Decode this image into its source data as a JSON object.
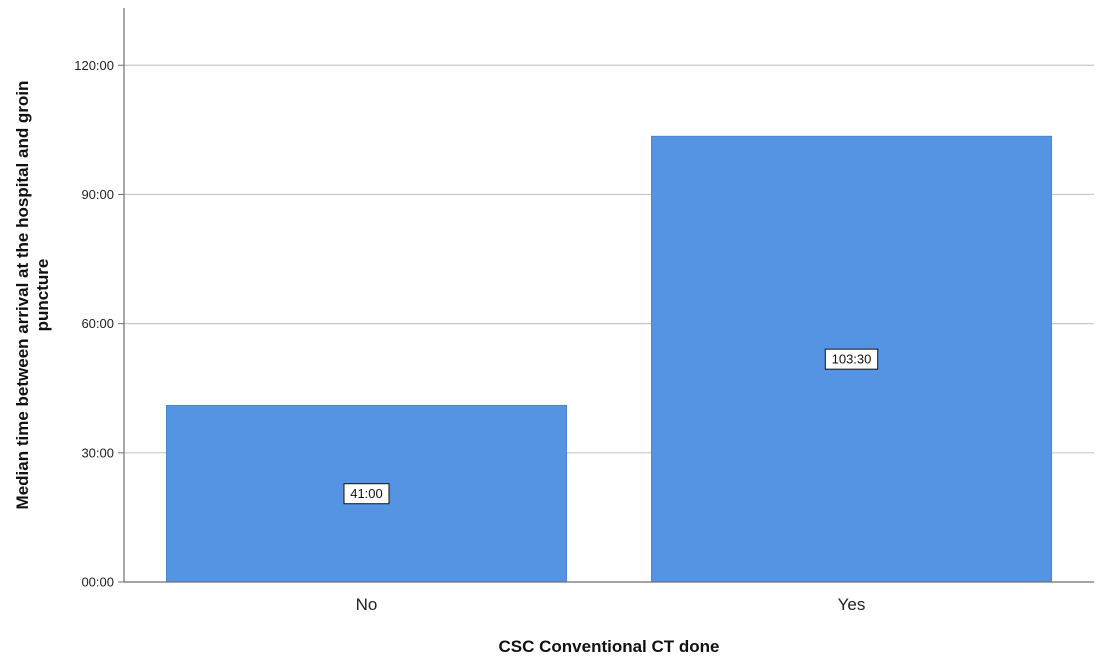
{
  "chart_data": {
    "type": "bar",
    "categories": [
      "No",
      "Yes"
    ],
    "values": [
      41.0,
      103.5
    ],
    "value_labels": [
      "41:00",
      "103:30"
    ],
    "xlabel": "CSC Conventional CT done",
    "ylabel_lines": [
      "Median time between arrival at the hospital and groin",
      "puncture"
    ],
    "ylim": [
      0,
      133.3
    ],
    "yticks": [
      0,
      30,
      60,
      90,
      120
    ],
    "ytick_labels": [
      "00:00",
      "30:00",
      "60:00",
      "90:00",
      "120:00"
    ],
    "grid": true,
    "colors": {
      "bar": "#5494e3",
      "bar_edge": "#4a86d0",
      "grid": "#c8c8c8",
      "axis": "#6f6f6f"
    }
  }
}
